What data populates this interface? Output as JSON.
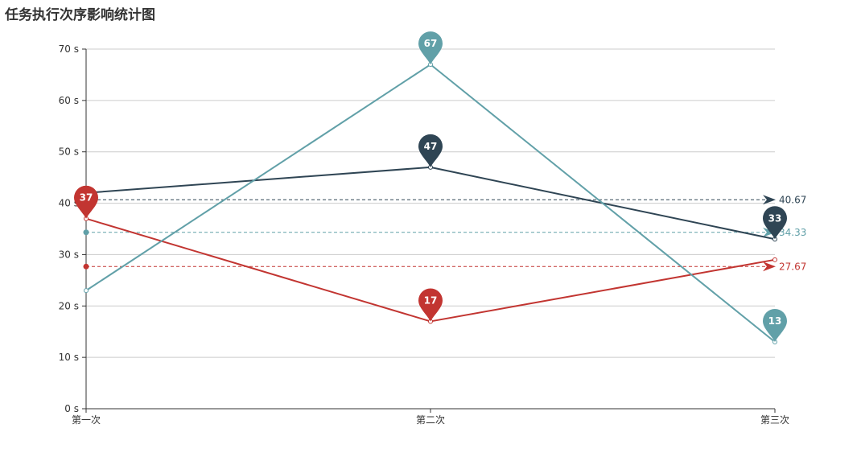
{
  "title": "任务执行次序影响统计图",
  "chart_data": {
    "type": "line",
    "title": "任务执行次序影响统计图",
    "categories": [
      "第一次",
      "第二次",
      "第三次"
    ],
    "ylim": [
      0,
      70
    ],
    "y_ticks": [
      "0 s",
      "10 s",
      "20 s",
      "30 s",
      "40 s",
      "50 s",
      "60 s",
      "70 s"
    ],
    "grid": true,
    "series": [
      {
        "color": "#c23531",
        "values": [
          37,
          17,
          29
        ],
        "markers": [
          {
            "index": 0,
            "label": "37"
          },
          {
            "index": 1,
            "label": "17"
          }
        ],
        "average": 27.67,
        "average_label": "27.67"
      },
      {
        "color": "#2f4554",
        "values": [
          42,
          47,
          33
        ],
        "markers": [
          {
            "index": 1,
            "label": "47"
          },
          {
            "index": 2,
            "label": "33"
          }
        ],
        "average": 40.67,
        "average_label": "40.67"
      },
      {
        "color": "#61a0a8",
        "values": [
          23,
          67,
          13
        ],
        "markers": [
          {
            "index": 1,
            "label": "67"
          },
          {
            "index": 2,
            "label": "13"
          }
        ],
        "average": 34.33,
        "average_label": "34.33"
      }
    ]
  }
}
